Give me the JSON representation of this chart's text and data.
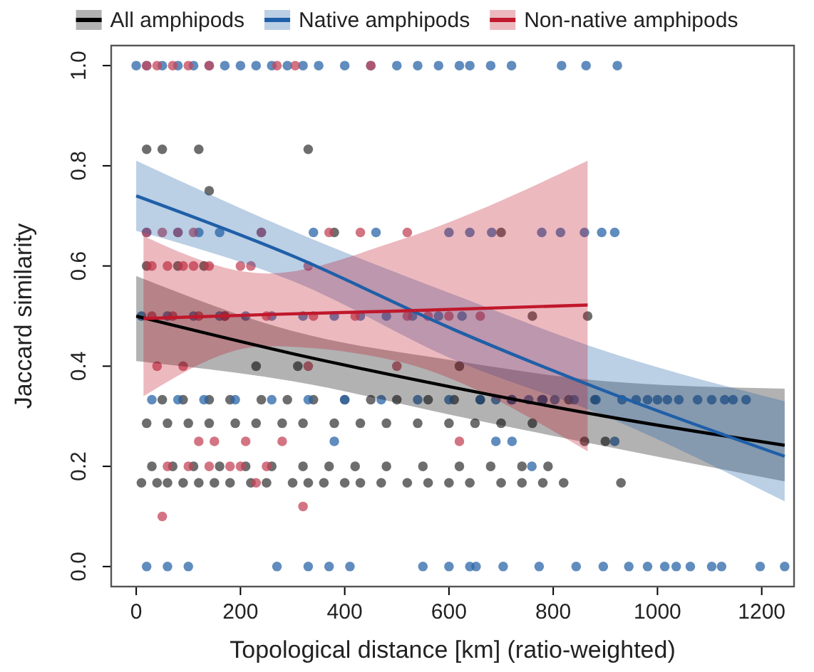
{
  "chart_data": {
    "type": "scatter",
    "xlabel": "Topological distance [km] (ratio-weighted)",
    "ylabel": "Jaccard similarity",
    "xlim": [
      -48,
      1262
    ],
    "ylim": [
      -0.04,
      1.04
    ],
    "xticks": [
      0,
      200,
      400,
      600,
      800,
      1000,
      1200
    ],
    "yticks": [
      {
        "value": 0,
        "label": "0.0"
      },
      0.2,
      0.4,
      0.6,
      0.8,
      {
        "value": 1,
        "label": "1.0"
      }
    ],
    "legend": "top",
    "grid": false,
    "marker": "circle",
    "series": [
      {
        "color": "#3c3c3c",
        "x": [
          10,
          40,
          60,
          90,
          120,
          150,
          180,
          220,
          250,
          300,
          330,
          360,
          400,
          430,
          470,
          520,
          560,
          600,
          640,
          700,
          740,
          780,
          820,
          20,
          60,
          100,
          140,
          190,
          230,
          280,
          320,
          380,
          430,
          480,
          540,
          600,
          650,
          700,
          760,
          30,
          70,
          110,
          160,
          210,
          260,
          320,
          370,
          420,
          480,
          550,
          620,
          680,
          740,
          790,
          860,
          900,
          50,
          90,
          140,
          180,
          240,
          290,
          340,
          400,
          450,
          500,
          560,
          610,
          660,
          720,
          780,
          830,
          880,
          930,
          20,
          80,
          130,
          170,
          230,
          310,
          20,
          50,
          120,
          140,
          330,
          380,
          700,
          760,
          620,
          866
        ],
        "values": [
          0.167,
          0.167,
          0.167,
          0.167,
          0.167,
          0.167,
          0.167,
          0.167,
          0.167,
          0.167,
          0.167,
          0.167,
          0.167,
          0.167,
          0.167,
          0.167,
          0.167,
          0.167,
          0.167,
          0.167,
          0.167,
          0.167,
          0.167,
          0.286,
          0.286,
          0.286,
          0.286,
          0.286,
          0.286,
          0.286,
          0.286,
          0.286,
          0.286,
          0.286,
          0.286,
          0.286,
          0.286,
          0.286,
          0.286,
          0.2,
          0.2,
          0.2,
          0.2,
          0.2,
          0.2,
          0.2,
          0.2,
          0.2,
          0.2,
          0.2,
          0.2,
          0.2,
          0.2,
          0.2,
          0.25,
          0.25,
          0.333,
          0.333,
          0.333,
          0.333,
          0.333,
          0.333,
          0.333,
          0.333,
          0.333,
          0.333,
          0.333,
          0.333,
          0.333,
          0.333,
          0.333,
          0.333,
          0.333,
          0.167,
          0.6,
          0.6,
          0.6,
          0.5,
          0.4,
          0.4,
          0.833,
          0.833,
          0.833,
          0.75,
          0.833,
          0.667,
          0.667,
          0.5,
          0.4,
          0.5
        ]
      },
      {
        "color": "#2b65a8",
        "x": [
          0,
          20,
          50,
          80,
          110,
          140,
          170,
          200,
          230,
          260,
          290,
          320,
          350,
          400,
          450,
          500,
          540,
          580,
          620,
          640,
          680,
          720,
          816,
          863,
          923,
          20,
          80,
          120,
          160,
          240,
          340,
          460,
          600,
          640,
          682,
          778,
          814,
          860,
          893,
          918,
          10,
          60,
          110,
          160,
          210,
          260,
          320,
          380,
          430,
          480,
          530,
          580,
          625,
          690,
          721,
          753,
          778,
          803,
          882,
          932,
          959,
          981,
          1000,
          1019,
          1041,
          1077,
          1104,
          1129,
          1145,
          1170,
          30,
          80,
          130,
          190,
          260,
          330,
          400,
          470,
          540,
          600,
          660,
          720,
          780,
          840,
          20,
          60,
          100,
          270,
          330,
          370,
          410,
          550,
          600,
          640,
          652,
          704,
          773,
          844,
          896,
          945,
          981,
          1014,
          1036,
          1063,
          1104,
          1123,
          1197,
          1244,
          690,
          721,
          918,
          759,
          380
        ],
        "values": [
          1,
          1,
          1,
          1,
          1,
          1,
          1,
          1,
          1,
          1,
          1,
          1,
          1,
          1,
          1,
          1,
          1,
          1,
          1,
          1,
          1,
          1,
          1,
          1,
          1,
          0.667,
          0.667,
          0.667,
          0.667,
          0.667,
          0.667,
          0.667,
          0.667,
          0.667,
          0.667,
          0.667,
          0.667,
          0.667,
          0.667,
          0.667,
          0.5,
          0.5,
          0.5,
          0.5,
          0.5,
          0.5,
          0.5,
          0.5,
          0.5,
          0.5,
          0.5,
          0.5,
          0.5,
          0.333,
          0.333,
          0.333,
          0.333,
          0.333,
          0.333,
          0.333,
          0.333,
          0.333,
          0.333,
          0.333,
          0.333,
          0.333,
          0.333,
          0.333,
          0.333,
          0.333,
          0.333,
          0.333,
          0.333,
          0.333,
          0.333,
          0.333,
          0.333,
          0.333,
          0.333,
          0.333,
          0.333,
          0.333,
          0.333,
          0.333,
          0,
          0,
          0,
          0,
          0,
          0,
          0,
          0,
          0,
          0,
          0,
          0,
          0,
          0,
          0,
          0,
          0,
          0,
          0,
          0,
          0,
          0,
          0,
          0,
          0.25,
          0.25,
          0.25,
          0.2,
          0.25
        ]
      },
      {
        "color": "#c4455a",
        "x": [
          20,
          40,
          70,
          100,
          140,
          270,
          305,
          450,
          30,
          60,
          90,
          110,
          140,
          200,
          220,
          330,
          30,
          70,
          120,
          170,
          250,
          340,
          420,
          520,
          560,
          600,
          20,
          50,
          80,
          110,
          240,
          370,
          430,
          520,
          660,
          40,
          90,
          150,
          210,
          280,
          330,
          60,
          100,
          140,
          200,
          230,
          620,
          120,
          180,
          250,
          50,
          320,
          500
        ],
        "values": [
          1,
          1,
          1,
          1,
          1,
          1,
          1,
          1,
          0.6,
          0.6,
          0.6,
          0.6,
          0.6,
          0.6,
          0.6,
          0.6,
          0.5,
          0.5,
          0.5,
          0.5,
          0.5,
          0.5,
          0.5,
          0.5,
          0.5,
          0.5,
          0.667,
          0.667,
          0.667,
          0.667,
          0.667,
          0.667,
          0.667,
          0.667,
          0.5,
          0.4,
          0.4,
          0.25,
          0.25,
          0.25,
          0.4,
          0.2,
          0.2,
          0.2,
          0.2,
          0.167,
          0.25,
          0.25,
          0.2,
          0.2,
          0.1,
          0.12,
          0.4
        ]
      },
      {
        "type": "line",
        "marker": "none",
        "name": "All amphipods",
        "color": "#000000",
        "x": [
          0,
          300,
          616,
          900,
          1244
        ],
        "values": [
          0.5,
          0.425,
          0.356,
          0.3,
          0.242
        ],
        "lower": [
          0.41,
          0.37,
          0.3,
          0.24,
          0.17
        ],
        "upper": [
          0.58,
          0.47,
          0.41,
          0.37,
          0.355
        ]
      },
      {
        "type": "line",
        "marker": "none",
        "name": "Native amphipods",
        "color": "#1f5fa8",
        "x": [
          0,
          300,
          616,
          900,
          1244
        ],
        "values": [
          0.74,
          0.62,
          0.47,
          0.35,
          0.22
        ],
        "lower": [
          0.67,
          0.57,
          0.41,
          0.3,
          0.13
        ],
        "upper": [
          0.81,
          0.67,
          0.54,
          0.43,
          0.33
        ]
      },
      {
        "type": "line",
        "marker": "none",
        "name": "Non-native amphipods",
        "color": "#c0182c",
        "x": [
          14,
          250,
          500,
          866
        ],
        "values": [
          0.495,
          0.503,
          0.51,
          0.522
        ],
        "lower": [
          0.34,
          0.44,
          0.41,
          0.23
        ],
        "upper": [
          0.66,
          0.585,
          0.65,
          0.81
        ]
      }
    ]
  }
}
